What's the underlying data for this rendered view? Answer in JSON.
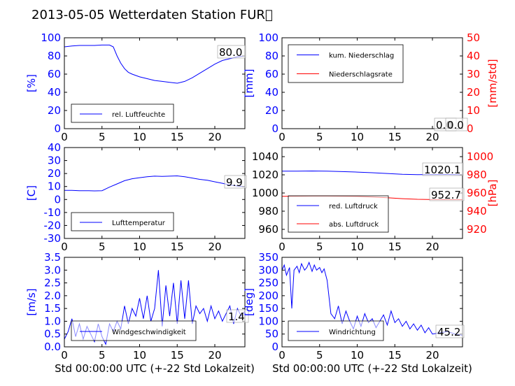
{
  "figure": {
    "title": "2013-05-05 Wetterdaten Station FUR\u0000"
  },
  "colors": {
    "primary_series": "#0000ff",
    "secondary_series": "#ff0000",
    "secondary_axis": "#ff0000"
  },
  "chart_data": [
    {
      "id": "humidity",
      "type": "line",
      "title": "",
      "xlabel": "",
      "ylabel": "[%]",
      "xlim": [
        0,
        24
      ],
      "ylim": [
        0,
        100
      ],
      "xticks": [
        0,
        5,
        10,
        15,
        20
      ],
      "yticks": [
        0,
        20,
        40,
        60,
        80,
        100
      ],
      "legend": "bottom-left",
      "last_value_label": "80.0",
      "series": [
        {
          "name": "rel. Luftfeuchte",
          "color": "#0000ff",
          "axis": "left",
          "x": [
            0,
            1,
            2,
            3,
            4,
            5,
            6,
            6.5,
            7,
            7.5,
            8,
            8.5,
            9,
            10,
            11,
            12,
            13,
            14,
            15,
            16,
            17,
            18,
            19,
            20,
            21,
            22,
            23,
            24
          ],
          "y": [
            90,
            91,
            91.5,
            91.5,
            91.5,
            92,
            92,
            90,
            80,
            72,
            66,
            62,
            60,
            57,
            55,
            53,
            52,
            51,
            50,
            52,
            56,
            61,
            66,
            71,
            75,
            77,
            79,
            80
          ]
        }
      ]
    },
    {
      "id": "precipitation",
      "type": "line",
      "title": "",
      "xlabel": "",
      "ylabel": "[mm]",
      "ylabel_right": "[mm/std]",
      "xlim": [
        0,
        24
      ],
      "ylim": [
        0,
        100
      ],
      "ylim_right": [
        0,
        50
      ],
      "xticks": [
        0,
        5,
        10,
        15,
        20
      ],
      "yticks": [
        0,
        20,
        40,
        60,
        80,
        100
      ],
      "yticks_right": [
        0,
        10,
        20,
        30,
        40,
        50
      ],
      "legend": "top-left",
      "last_value_labels": [
        "0.0",
        "0.0"
      ],
      "series": [
        {
          "name": "kum. Niederschlag",
          "color": "#0000ff",
          "axis": "left",
          "x": [
            0,
            24
          ],
          "y": [
            0,
            0
          ]
        },
        {
          "name": "Niederschlagsrate",
          "color": "#ff0000",
          "axis": "right",
          "x": [
            0,
            24
          ],
          "y": [
            0,
            0
          ]
        }
      ]
    },
    {
      "id": "temperature",
      "type": "line",
      "title": "",
      "xlabel": "",
      "ylabel": "[C]",
      "xlim": [
        0,
        24
      ],
      "ylim": [
        -30,
        40
      ],
      "xticks": [
        0,
        5,
        10,
        15,
        20
      ],
      "yticks": [
        -30,
        -20,
        -10,
        0,
        10,
        20,
        30,
        40
      ],
      "legend": "bottom-left",
      "last_value_label": "9.9",
      "series": [
        {
          "name": "Lufttemperatur",
          "color": "#0000ff",
          "axis": "left",
          "x": [
            0,
            1,
            2,
            3,
            4,
            5,
            6,
            7,
            8,
            9,
            10,
            11,
            12,
            13,
            14,
            15,
            16,
            17,
            18,
            19,
            20,
            21,
            22,
            23,
            24
          ],
          "y": [
            7,
            7,
            6.8,
            6.8,
            6.6,
            6.8,
            9.5,
            12,
            14.5,
            16,
            16.8,
            17.5,
            18,
            17.8,
            18,
            18.2,
            17.5,
            16.5,
            15.5,
            14.8,
            13.6,
            12.5,
            11.2,
            10.4,
            9.9
          ]
        }
      ]
    },
    {
      "id": "pressure",
      "type": "line",
      "title": "",
      "xlabel": "",
      "ylabel": "",
      "ylabel_right": "[hPa]",
      "xlim": [
        0,
        24
      ],
      "ylim": [
        950,
        1050
      ],
      "ylim_right": [
        910,
        1010
      ],
      "xticks": [
        0,
        5,
        10,
        15,
        20
      ],
      "yticks": [
        960,
        980,
        1000,
        1020,
        1040
      ],
      "yticks_right": [
        920,
        940,
        960,
        980,
        1000
      ],
      "legend": "bottom-left",
      "last_value_labels": [
        "1020.1",
        "952.7"
      ],
      "series": [
        {
          "name": "red. Luftdruck",
          "color": "#0000ff",
          "axis": "left",
          "x": [
            0,
            2,
            4,
            6,
            8,
            10,
            12,
            14,
            16,
            18,
            20,
            22,
            24
          ],
          "y": [
            1024,
            1024,
            1024.2,
            1024,
            1023.5,
            1023,
            1022.3,
            1021.5,
            1020.6,
            1020.2,
            1020.3,
            1020.4,
            1020.1
          ]
        },
        {
          "name": "abs. Luftdruck",
          "color": "#ff0000",
          "axis": "right",
          "x": [
            0,
            2,
            4,
            6,
            8,
            10,
            12,
            14,
            16,
            18,
            20,
            22,
            24
          ],
          "y": [
            956.4,
            956.5,
            956.6,
            956.6,
            956.5,
            956.2,
            955.6,
            954.8,
            953.8,
            953.1,
            952.8,
            952.7,
            952.7
          ]
        }
      ]
    },
    {
      "id": "windspeed",
      "type": "line",
      "title": "",
      "xlabel": "Std 00:00:00 UTC (+-22 Std Lokalzeit)",
      "ylabel": "[m/s]",
      "xlim": [
        0,
        24
      ],
      "ylim": [
        0,
        3.5
      ],
      "xticks": [
        0,
        5,
        10,
        15,
        20
      ],
      "yticks": [
        0.0,
        0.5,
        1.0,
        1.5,
        2.0,
        2.5,
        3.0,
        3.5
      ],
      "legend": "bottom-left",
      "last_value_label": "1.4",
      "series": [
        {
          "name": "Windgeschwindigkeit",
          "color": "#0000ff",
          "axis": "left",
          "x": [
            0,
            0.5,
            1,
            1.5,
            2,
            2.5,
            3,
            3.5,
            4,
            4.5,
            5,
            5.5,
            6,
            6.5,
            7,
            7.5,
            8,
            8.5,
            9,
            9.5,
            10,
            10.5,
            11,
            11.5,
            12,
            12.5,
            13,
            13.5,
            14,
            14.5,
            15,
            15.5,
            16,
            16.5,
            17,
            17.5,
            18,
            18.5,
            19,
            19.5,
            20,
            20.5,
            21,
            21.5,
            22,
            22.5,
            23,
            23.5,
            24
          ],
          "y": [
            0.3,
            0.6,
            1.1,
            0.4,
            0.9,
            0.3,
            0.8,
            0.5,
            0.2,
            0.9,
            0.4,
            0.1,
            0.9,
            0.6,
            1.0,
            0.7,
            1.6,
            0.9,
            1.5,
            1.2,
            1.9,
            1.1,
            2.0,
            1.0,
            1.5,
            3.0,
            0.8,
            2.4,
            1.2,
            2.5,
            0.9,
            2.6,
            1.1,
            2.6,
            0.9,
            1.6,
            1.3,
            1.5,
            1.0,
            1.6,
            1.1,
            1.4,
            1.0,
            1.3,
            1.6,
            0.9,
            1.5,
            1.2,
            1.4
          ]
        }
      ]
    },
    {
      "id": "winddirection",
      "type": "line",
      "title": "",
      "xlabel": "Std 00:00:00 UTC (+-22 Std Lokalzeit)",
      "ylabel": "[deg]",
      "xlim": [
        0,
        24
      ],
      "ylim": [
        0,
        350
      ],
      "xticks": [
        0,
        5,
        10,
        15,
        20
      ],
      "yticks": [
        0,
        50,
        100,
        150,
        200,
        250,
        300,
        350
      ],
      "legend": "bottom-left",
      "last_value_label": "45.2",
      "series": [
        {
          "name": "Windrichtung",
          "color": "#0000ff",
          "axis": "left",
          "x": [
            0,
            0.3,
            0.6,
            1,
            1.3,
            1.6,
            2,
            2.3,
            2.6,
            3,
            3.3,
            3.6,
            4,
            4.3,
            4.6,
            5,
            5.3,
            5.6,
            6,
            6.5,
            7,
            7.5,
            8,
            8.5,
            9,
            9.5,
            10,
            10.5,
            11,
            11.5,
            12,
            12.5,
            13,
            13.5,
            14,
            14.5,
            15,
            15.5,
            16,
            16.5,
            17,
            17.5,
            18,
            18.5,
            19,
            19.5,
            20,
            21,
            22,
            23,
            24
          ],
          "y": [
            300,
            320,
            280,
            310,
            150,
            300,
            315,
            290,
            325,
            300,
            310,
            330,
            295,
            320,
            300,
            310,
            290,
            305,
            260,
            130,
            110,
            160,
            90,
            140,
            100,
            70,
            120,
            80,
            130,
            95,
            110,
            75,
            100,
            125,
            85,
            140,
            95,
            110,
            80,
            100,
            70,
            90,
            65,
            85,
            55,
            75,
            50,
            55,
            60,
            50,
            45
          ]
        }
      ]
    }
  ]
}
